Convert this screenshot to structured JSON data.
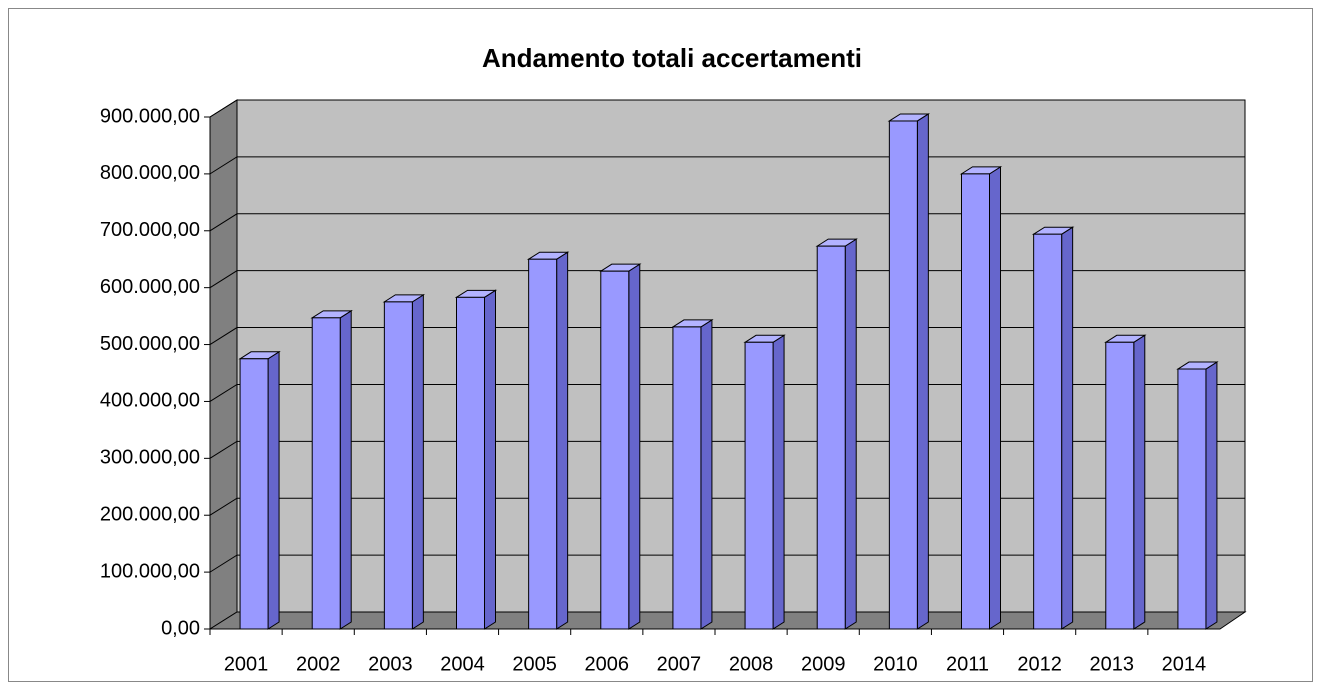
{
  "chart_data": {
    "type": "bar3d",
    "title": "Andamento totali accertamenti",
    "categories": [
      "2001",
      "2002",
      "2003",
      "2004",
      "2005",
      "2006",
      "2007",
      "2008",
      "2009",
      "2010",
      "2011",
      "2012",
      "2013",
      "2014"
    ],
    "values": [
      475000,
      547000,
      575000,
      583000,
      650000,
      629000,
      531000,
      504000,
      673000,
      893000,
      800000,
      694000,
      504000,
      457000
    ],
    "color": "#9999ff",
    "ylim": [
      0,
      900000
    ],
    "yticks": [
      {
        "value": 0,
        "label": "0,00"
      },
      {
        "value": 100000,
        "label": "100.000,00"
      },
      {
        "value": 200000,
        "label": "200.000,00"
      },
      {
        "value": 300000,
        "label": "300.000,00"
      },
      {
        "value": 400000,
        "label": "400.000,00"
      },
      {
        "value": 500000,
        "label": "500.000,00"
      },
      {
        "value": 600000,
        "label": "600.000,00"
      },
      {
        "value": 700000,
        "label": "700.000,00"
      },
      {
        "value": 800000,
        "label": "800.000,00"
      },
      {
        "value": 900000,
        "label": "900.000,00"
      }
    ],
    "grid": true
  }
}
